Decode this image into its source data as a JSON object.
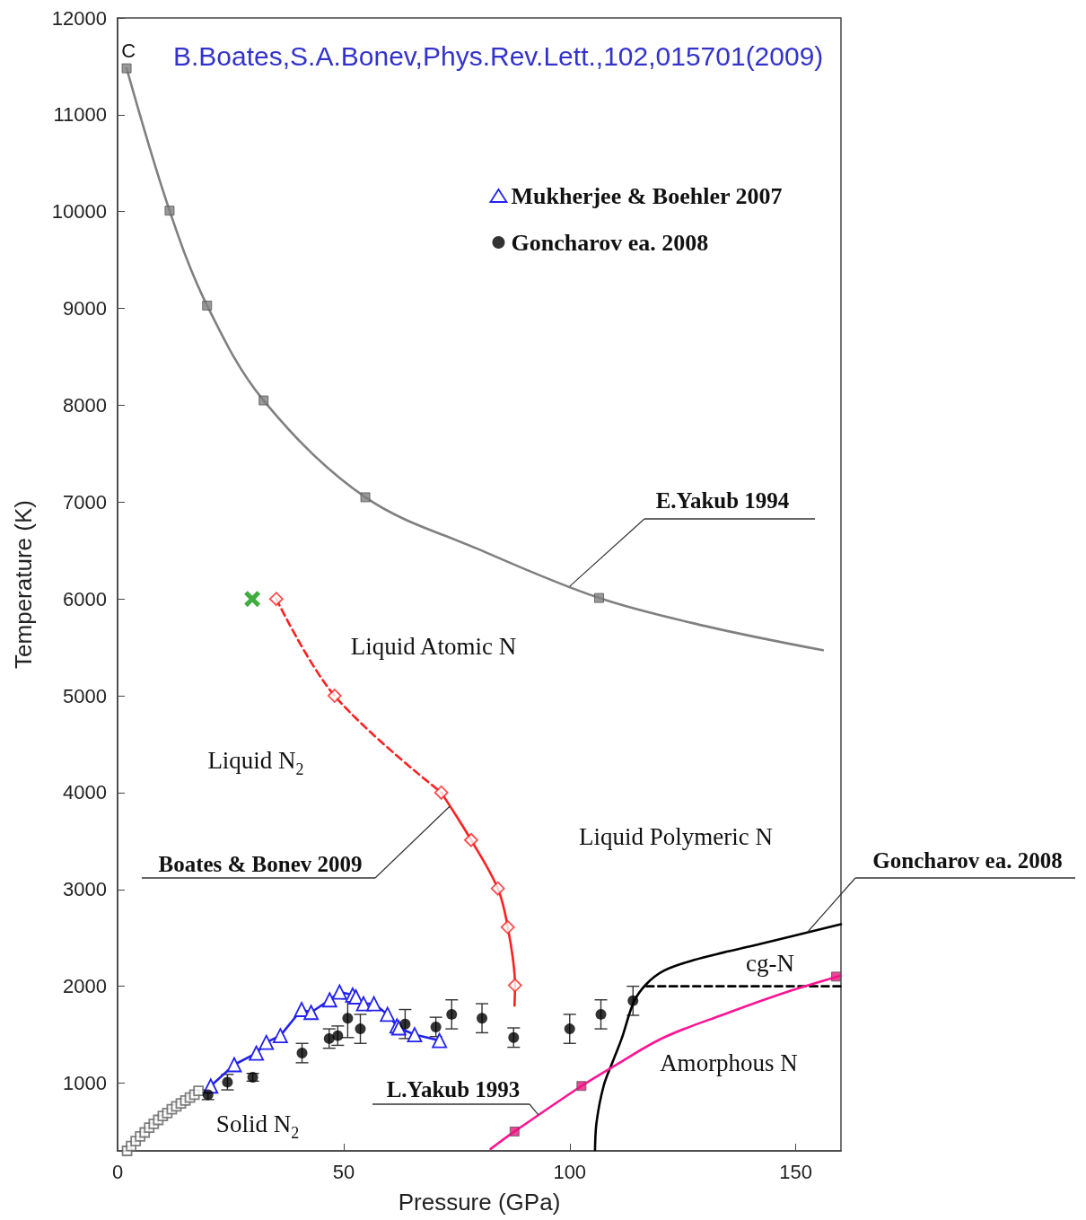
{
  "chart_data": {
    "type": "line",
    "title": "B.Boates,S.A.Bonev,Phys.Rev.Lett.,102,015701(2009)",
    "xlabel": "Pressure (GPa)",
    "ylabel": "Temperature (K)",
    "xlim": [
      0,
      160
    ],
    "xticks": [
      0,
      50,
      100,
      150
    ],
    "ylim": [
      300,
      12000
    ],
    "yticks": [
      1000,
      2000,
      3000,
      4000,
      5000,
      6000,
      7000,
      8000,
      9000,
      10000,
      11000,
      12000
    ],
    "grid": false,
    "legend": "top right",
    "series": [
      {
        "color": "#808080",
        "marker": "none",
        "x": [
          2,
          11.5,
          19.8,
          32.3,
          54.8,
          80,
          106.5,
          130,
          156
        ],
        "values": [
          11480,
          10010,
          9030,
          8050,
          7050,
          6510,
          6010,
          5720,
          5470
        ]
      },
      {
        "type": "scatter",
        "color": "#808080",
        "marker": "square",
        "x": [
          2,
          11.5,
          19.8,
          32.3,
          54.8,
          106.5
        ],
        "values": [
          11480,
          10010,
          9030,
          8050,
          7050,
          6010
        ]
      },
      {
        "color": "#ff2020",
        "marker": "none",
        "line_style": "dashed",
        "x": [
          35.1,
          48,
          71.6
        ],
        "values": [
          6000,
          5000,
          4000
        ]
      },
      {
        "color": "#ff2020",
        "marker": "none",
        "x": [
          71.6,
          78.2,
          84.1,
          86.3,
          87.9,
          87.8
        ],
        "values": [
          4000,
          3510,
          3010,
          2610,
          2010,
          1800
        ]
      },
      {
        "type": "scatter",
        "color": "#ff2020",
        "marker": "diamond",
        "x": [
          35.1,
          48,
          71.6,
          78.2,
          84.1,
          86.3,
          87.9
        ],
        "values": [
          6000,
          5000,
          4000,
          3510,
          3010,
          2610,
          2010
        ]
      },
      {
        "type": "scatter",
        "color": "#119911",
        "marker": "cross",
        "x": [
          29.8
        ],
        "values": [
          6000
        ]
      },
      {
        "type": "scatter",
        "color": "#606060",
        "marker": "square",
        "x": [
          2.1,
          3,
          4,
          5,
          6,
          7,
          8,
          9,
          10,
          11,
          12,
          13,
          14,
          15,
          16,
          17,
          17.9
        ],
        "values": [
          300,
          350,
          400,
          450,
          490,
          540,
          580,
          620,
          660,
          690,
          730,
          760,
          790,
          820,
          850,
          880,
          920
        ]
      },
      {
        "name": "Mukherjee & Boehler 2007",
        "color": "#2222ee",
        "marker": "triangle",
        "x": [
          20.6,
          25.8,
          30.7,
          32.9,
          36,
          40.7,
          42.8,
          46.9,
          49.1,
          52,
          52.7,
          54.4,
          56.7,
          59.7,
          61.8,
          62.2,
          65.7,
          71.2
        ],
        "values": [
          970,
          1190,
          1310,
          1420,
          1490,
          1760,
          1730,
          1860,
          1940,
          1910,
          1890,
          1820,
          1820,
          1710,
          1590,
          1570,
          1500,
          1440
        ]
      },
      {
        "type": "scatter",
        "name": "Goncharov ea. 2008",
        "color": "#000000",
        "marker": "circle",
        "x": [
          20,
          24.3,
          29.9,
          40.8,
          46.8,
          48.7,
          50.9,
          53.7,
          63.6,
          70.4,
          73.9,
          80.6,
          87.6,
          100,
          106.9,
          114
        ],
        "values": [
          880,
          1010,
          1060,
          1310,
          1460,
          1490,
          1670,
          1560,
          1610,
          1580,
          1710,
          1670,
          1470,
          1560,
          1710,
          1850
        ],
        "errors": [
          50,
          80,
          40,
          100,
          100,
          100,
          200,
          150,
          150,
          100,
          150,
          150,
          100,
          150,
          150,
          150
        ]
      },
      {
        "color": "#000000",
        "marker": "none",
        "x": [
          105.6,
          105.95,
          107.5,
          109.5,
          111.5,
          114.2,
          116.9,
          120.8,
          127.4,
          134.1,
          140.7,
          160
        ],
        "values": [
          310,
          600,
          970,
          1220,
          1460,
          1840,
          2020,
          2160,
          2270,
          2350,
          2420,
          2640
        ]
      },
      {
        "color": "#000000",
        "marker": "none",
        "line_style": "dashed",
        "x": [
          117,
          160
        ],
        "values": [
          2000,
          2000
        ]
      },
      {
        "color": "#ff1493",
        "marker": "none",
        "x": [
          82.5,
          87.8,
          102.6,
          109.6,
          120.8,
          134.1,
          147.3,
          160
        ],
        "values": [
          320,
          500,
          970,
          1170,
          1470,
          1710,
          1930,
          2110
        ]
      },
      {
        "type": "scatter",
        "color": "#e8177f",
        "marker": "square",
        "x": [
          87.8,
          102.6,
          158.9
        ],
        "values": [
          500,
          970,
          2100
        ]
      }
    ],
    "annotations": [
      {
        "text": "E.Yakub 1994",
        "x": 100,
        "y": 6130
      },
      {
        "text": "Boates & Bonev 2009",
        "x": 73.5,
        "y": 3860
      },
      {
        "text": "L.Yakub 1993",
        "x": 93.1,
        "y": 670
      },
      {
        "text": "Goncharov ea. 2008",
        "x": 152.6,
        "y": 2560
      },
      {
        "text": "C",
        "x": 2,
        "y": 11480
      },
      "Liquid Atomic N",
      "Liquid N$_{2}$",
      "Liquid Polymeric N",
      "cg-N",
      "Amorphous N",
      "Solid N$_{2}$"
    ]
  }
}
